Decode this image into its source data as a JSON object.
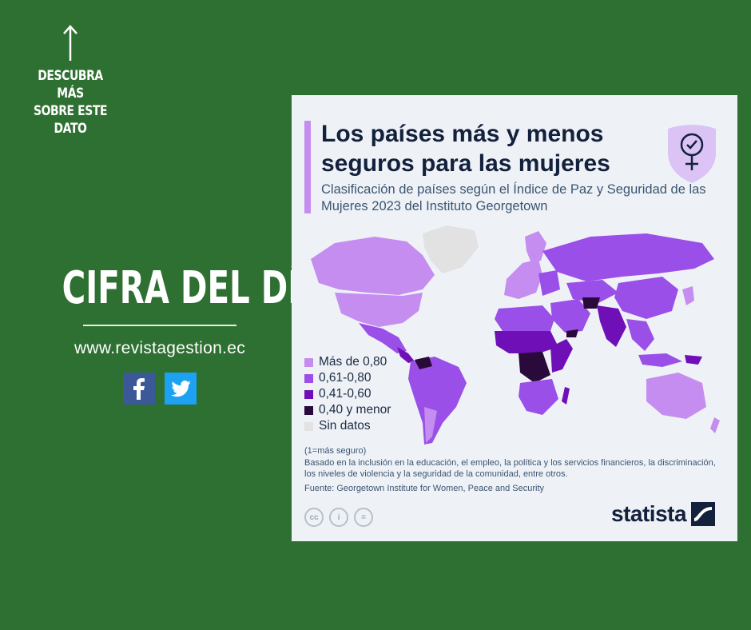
{
  "promo": {
    "cta_lines": [
      "DESCUBRA MÁS",
      "SOBRE ESTE",
      "DATO"
    ],
    "headline": "CIFRA DEL DÍA",
    "website": "www.revistagestion.ec",
    "social": [
      "facebook-icon",
      "twitter-icon"
    ],
    "background": "#2e7031"
  },
  "card": {
    "title": "Los países más y menos seguros para las mujeres",
    "subtitle": "Clasificación de países según el Índice de Paz y Seguridad de las Mujeres 2023 del Instituto Georgetown",
    "badge_icon": "female-symbol-check-icon",
    "legend": [
      {
        "label": "Más de 0,80",
        "color": "#c58df0"
      },
      {
        "label": "0,61-0,80",
        "color": "#9a4fe8"
      },
      {
        "label": "0,41-0,60",
        "color": "#6f0fb8"
      },
      {
        "label": "0,40 y menor",
        "color": "#2a0a3a"
      },
      {
        "label": "Sin datos",
        "color": "#e2e2e2"
      }
    ],
    "notes": {
      "scale": "(1=más seguro)",
      "basis": "Basado en la inclusión en la educación, el empleo, la política y los servicios financieros, la discriminación, los niveles de violencia y la seguridad de la comunidad, entre otros.",
      "source": "Fuente: Georgetown Institute for Women, Peace and Security"
    },
    "license_icons": [
      "cc-icon",
      "attribution-icon",
      "no-derivatives-icon"
    ],
    "license_glyphs": [
      "cc",
      "i",
      "="
    ],
    "brand": "statista"
  }
}
